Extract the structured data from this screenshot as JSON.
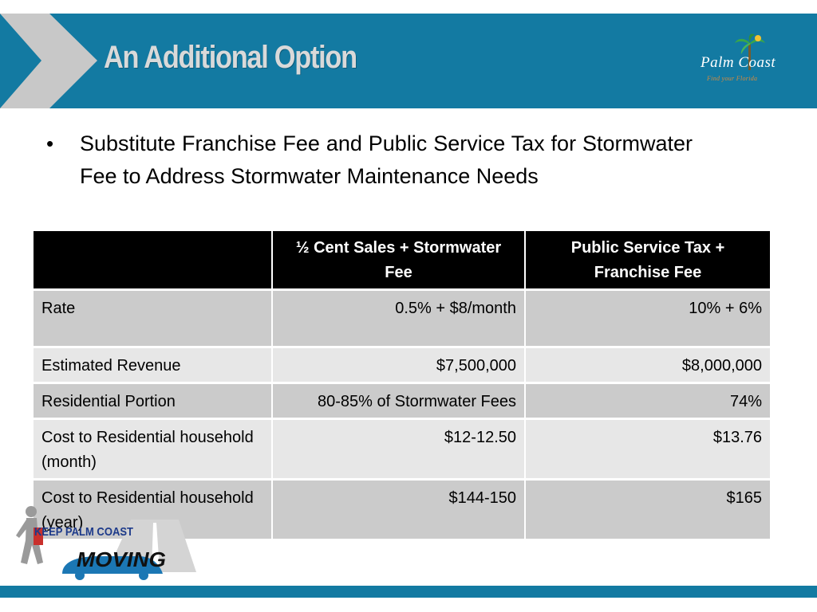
{
  "header": {
    "title": "An Additional Option",
    "accent_color": "#137aa2",
    "logo": {
      "brand": "Palm Coast",
      "tagline": "Find your Florida"
    }
  },
  "bullet": {
    "icon": "bullet-dot",
    "text": "Substitute Franchise Fee and Public Service Tax for Stormwater Fee to Address Stormwater Maintenance Needs"
  },
  "table": {
    "headers": [
      "",
      "½ Cent Sales + Stormwater Fee",
      "Public Service Tax + Franchise Fee"
    ],
    "rows": [
      {
        "label": "Rate",
        "a": "0.5% + $8/month",
        "b": "10% + 6%"
      },
      {
        "label": "Estimated Revenue",
        "a": "$7,500,000",
        "b": "$8,000,000"
      },
      {
        "label": "Residential Portion",
        "a": "80-85% of Stormwater Fees",
        "b": "74%"
      },
      {
        "label": "Cost to Residential household  (month)",
        "a": "$12-12.50",
        "b": "$13.76"
      },
      {
        "label": "Cost to Residential household  (year)",
        "a": "$144-150",
        "b": "$165"
      }
    ]
  },
  "footer_logo": {
    "line1": "KEEP PALM COAST",
    "line2": "MOVING"
  }
}
